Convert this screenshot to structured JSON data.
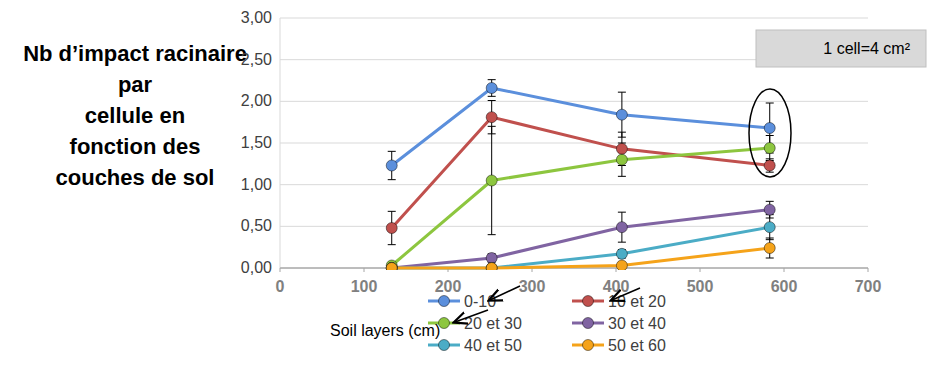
{
  "chart_data": {
    "type": "line",
    "title": "Nb d’impact racinaire\npar\ncellule en\nfonction des\ncouches de sol",
    "annotation": "1 cell=4 cm²",
    "legend_title": "Soil layers (cm)",
    "x": [
      133,
      252,
      407,
      583
    ],
    "xlim": [
      0,
      700
    ],
    "xticks": [
      0,
      100,
      200,
      300,
      400,
      500,
      600,
      700
    ],
    "ylim": [
      0,
      3
    ],
    "yticks": [
      {
        "value": 0,
        "label": "0,00"
      },
      {
        "value": 0.5,
        "label": "0,50"
      },
      {
        "value": 1,
        "label": "1,00"
      },
      {
        "value": 1.5,
        "label": "1,50"
      },
      {
        "value": 2,
        "label": "2,00"
      },
      {
        "value": 2.5,
        "label": "2,50"
      },
      {
        "value": 3,
        "label": "3,00"
      }
    ],
    "grid": true,
    "legend": "bottom",
    "marker": "circle",
    "series": [
      {
        "name": "0-10",
        "color": "#5b8fdc",
        "values": [
          1.23,
          2.16,
          1.84,
          1.68
        ],
        "errors": [
          0.17,
          0.1,
          0.27,
          0.3
        ]
      },
      {
        "name": "10 et 20",
        "color": "#c0504d",
        "values": [
          0.48,
          1.81,
          1.43,
          1.23
        ],
        "errors": [
          0.2,
          0.2,
          0.2,
          0.08
        ]
      },
      {
        "name": "20 et 30",
        "color": "#8dc63f",
        "values": [
          0.03,
          1.05,
          1.3,
          1.44
        ],
        "errors": [
          0.02,
          0.65,
          0.2,
          0.15
        ]
      },
      {
        "name": "30 et 40",
        "color": "#8064a2",
        "values": [
          0.0,
          0.12,
          0.49,
          0.7
        ],
        "errors": [
          0.0,
          0.05,
          0.18,
          0.1
        ]
      },
      {
        "name": "40 et 50",
        "color": "#4bacc6",
        "values": [
          0.0,
          0.0,
          0.17,
          0.49
        ],
        "errors": [
          0.0,
          0.0,
          0.05,
          0.15
        ]
      },
      {
        "name": "50 et 60",
        "color": "#f5a31a",
        "values": [
          0.0,
          0.0,
          0.03,
          0.24
        ],
        "errors": [
          0.0,
          0.0,
          0.03,
          0.12
        ]
      }
    ]
  }
}
